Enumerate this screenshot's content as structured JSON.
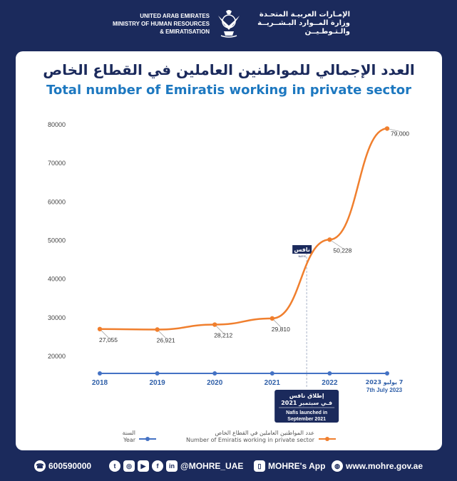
{
  "header": {
    "en_lines": [
      "UNITED ARAB EMIRATES",
      "MINISTRY OF HUMAN RESOURCES",
      "& EMIRATISATION"
    ],
    "ar_lines": [
      "الإمـارات العربيـة المتحـدة",
      "وزارة المــوارد البـشــريــة",
      "والـتـوطـيــن"
    ]
  },
  "title_ar": "العدد الإجمالي للمواطنين العاملين في القطاع الخاص",
  "title_en": "Total number of Emiratis working in private sector",
  "annotation": {
    "logo_text": "نافس",
    "logo_sub": "NAFIS",
    "ar": [
      "إطلاق نافس",
      "فـي سبتمبر 2021"
    ],
    "en": [
      "Nafis launched in",
      "September 2021"
    ]
  },
  "legend": {
    "year_ar": "السنة",
    "year_en": "Year",
    "emp_ar": "عدد المواطنين العاملين في القطاع الخاص",
    "emp_en": "Number of Emiratis working in private sector"
  },
  "footer": {
    "phone": "600590000",
    "handle": "@MOHRE_UAE",
    "app": "MOHRE's App",
    "website": "www.mohre.gov.ae"
  },
  "colors": {
    "navy": "#1b2a5c",
    "series_orange": "#f07f2e",
    "series_blue": "#4472c4",
    "title_blue": "#1d78c0"
  },
  "chart_data": {
    "type": "line",
    "categories": [
      "2018",
      "2019",
      "2020",
      "2021",
      "2022",
      "2023"
    ],
    "category_labels": [
      [
        "2018"
      ],
      [
        "2019"
      ],
      [
        "2020"
      ],
      [
        "2021"
      ],
      [
        "2022"
      ],
      [
        "7 يوليو 2023",
        "7th July 2023"
      ]
    ],
    "series": [
      {
        "name": "Number of Emiratis working in private sector",
        "values": [
          27055,
          26921,
          28212,
          29810,
          50228,
          79000
        ],
        "labels": [
          "27,055",
          "26,921",
          "28,212",
          "29,810",
          "50,228",
          "79,000"
        ],
        "color": "#f07f2e"
      },
      {
        "name": "Year",
        "color": "#4472c4"
      }
    ],
    "yticks": [
      "20000",
      "30000",
      "40000",
      "50000",
      "60000",
      "70000",
      "80000"
    ],
    "ylim": [
      20000,
      80000
    ],
    "grid": false,
    "annotation_at": "2021.6"
  }
}
